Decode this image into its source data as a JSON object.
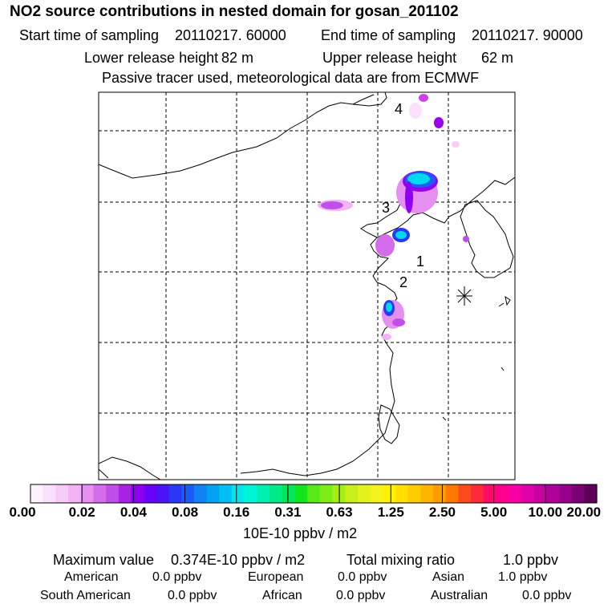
{
  "header": {
    "title": "NO2 source contributions in nested domain for gosan_201102",
    "start_label": "Start time of sampling",
    "start_value": "20110217. 60000",
    "end_label": "End time of sampling",
    "end_value": "20110217. 90000",
    "lower_label": "Lower release height",
    "lower_value": "82 m",
    "upper_label": "Upper release height",
    "upper_value": "62 m",
    "note": "Passive tracer used, meteorological data are from ECMWF"
  },
  "map": {
    "labels": [
      "4",
      "3",
      "1",
      "2"
    ],
    "receptor_icon": "asterisk-marker-icon"
  },
  "colorbar": {
    "ticks": [
      "0.00",
      "0.02",
      "0.04",
      "0.08",
      "0.16",
      "0.31",
      "0.63",
      "1.25",
      "2.50",
      "5.00",
      "10.00",
      "20.00"
    ],
    "colors": [
      "#fff2ff",
      "#fbe0fc",
      "#f7ccf9",
      "#f2b2f6",
      "#e58ff0",
      "#d46cec",
      "#c04fe8",
      "#aa22e6",
      "#8f00f2",
      "#6a00f6",
      "#4a14f6",
      "#2a38f5",
      "#1b5cf6",
      "#0f82f4",
      "#00a2f4",
      "#00bff2",
      "#00e6ec",
      "#00f4d6",
      "#00f0b2",
      "#00ea86",
      "#00e65a",
      "#12e41e",
      "#58ea18",
      "#7ced16",
      "#a6ef16",
      "#c6f018",
      "#e2f41c",
      "#f2f41c",
      "#fff200",
      "#ffe000",
      "#ffcc00",
      "#ffb400",
      "#ff9a00",
      "#ff7800",
      "#ff4a1c",
      "#ff2a3c",
      "#ff0a6a",
      "#ff0090",
      "#f600a6",
      "#e000a8",
      "#c800a2",
      "#b0009a",
      "#96008a",
      "#780074",
      "#5e005a"
    ],
    "unit": "10E-10 ppbv / m2"
  },
  "footer": {
    "max_label": "Maximum value",
    "max_value": "0.374E-10 ppbv / m2",
    "total_label": "Total mixing ratio",
    "total_value": "1.0 ppbv",
    "sources": [
      {
        "name": "American",
        "value": "0.0 ppbv"
      },
      {
        "name": "European",
        "value": "0.0 ppbv"
      },
      {
        "name": "Asian",
        "value": "1.0 ppbv"
      },
      {
        "name": "South American",
        "value": "0.0 ppbv"
      },
      {
        "name": "African",
        "value": "0.0 ppbv"
      },
      {
        "name": "Australian",
        "value": "0.0 ppbv"
      }
    ]
  }
}
